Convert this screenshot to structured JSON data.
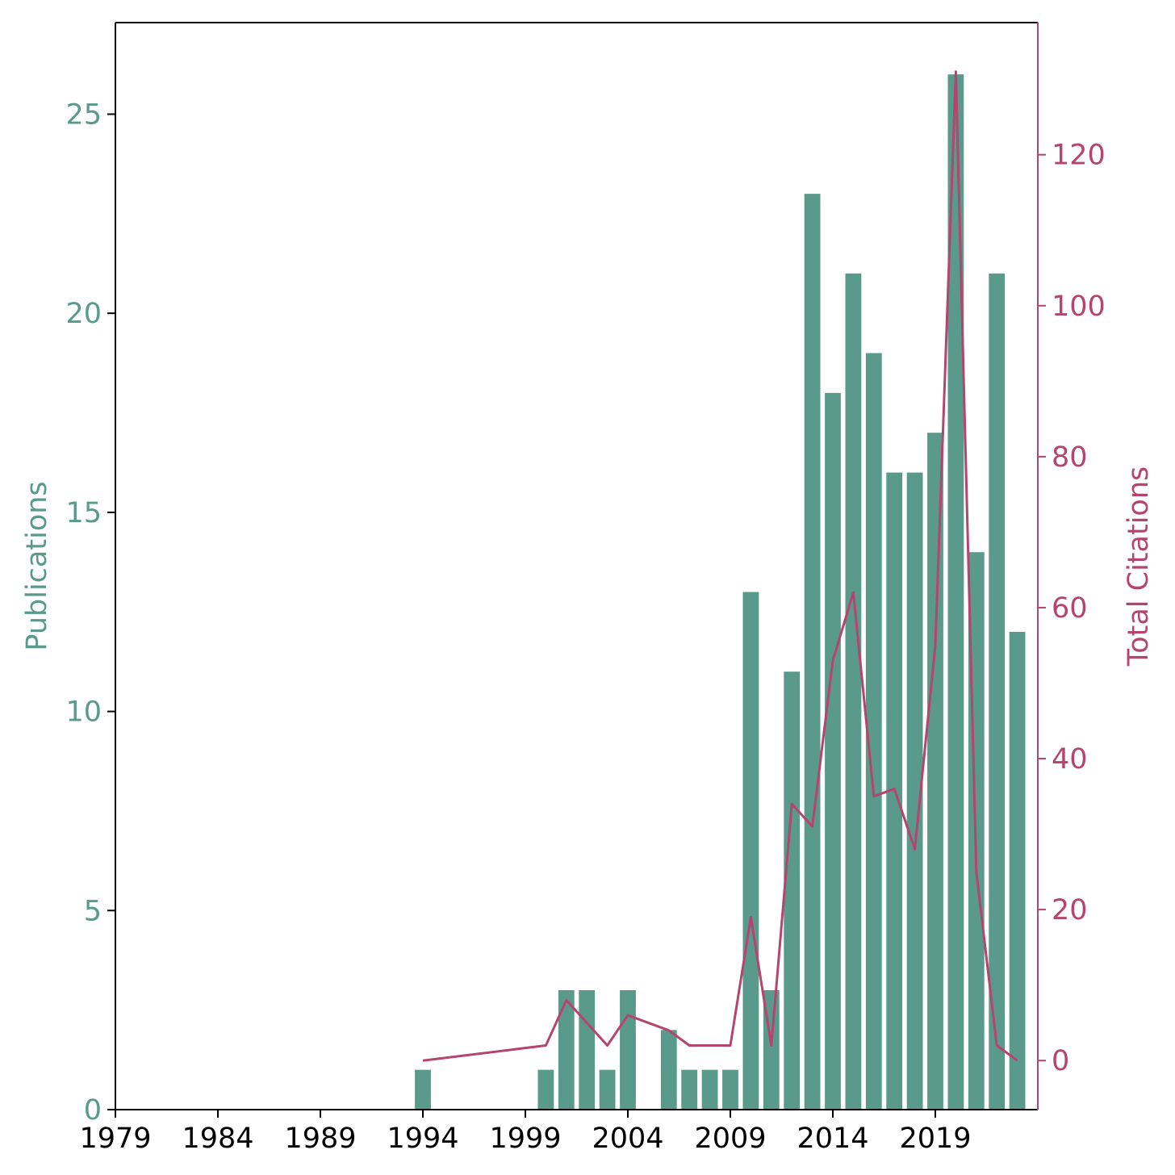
{
  "chart_data": {
    "type": "bar",
    "title": "",
    "xlabel": "",
    "ylabel": "Publications",
    "y2label": "Total Citations",
    "xlim": [
      1979,
      2024
    ],
    "ylim": [
      0,
      27.3
    ],
    "y2lim": [
      -6.5,
      137.5
    ],
    "x_ticks": [
      "1979",
      "1984",
      "1989",
      "1994",
      "1999",
      "2004",
      "2009",
      "2014",
      "2019"
    ],
    "y_ticks": [
      "0",
      "5",
      "10",
      "15",
      "20",
      "25"
    ],
    "y2_ticks": [
      "0",
      "20",
      "40",
      "60",
      "80",
      "100",
      "120"
    ],
    "grid": false,
    "colors": {
      "publications": "#5a9a8b",
      "citations": "#b5446e",
      "axis": "#000000"
    },
    "series": [
      {
        "name": "Publications",
        "type": "bar",
        "axis": "left",
        "x": [
          1994,
          2000,
          2001,
          2002,
          2003,
          2004,
          2006,
          2007,
          2008,
          2009,
          2010,
          2011,
          2012,
          2013,
          2014,
          2015,
          2016,
          2017,
          2018,
          2019,
          2020,
          2021,
          2022,
          2023
        ],
        "values": [
          1,
          1,
          3,
          3,
          1,
          3,
          2,
          1,
          1,
          1,
          13,
          3,
          11,
          23,
          18,
          21,
          19,
          16,
          16,
          17,
          26,
          14,
          21,
          12
        ]
      },
      {
        "name": "Total Citations",
        "type": "line",
        "axis": "right",
        "x": [
          1994,
          2000,
          2001,
          2002,
          2003,
          2004,
          2005,
          2006,
          2007,
          2008,
          2009,
          2010,
          2011,
          2012,
          2013,
          2014,
          2015,
          2016,
          2017,
          2018,
          2019,
          2020,
          2021,
          2022,
          2023
        ],
        "values": [
          0,
          2,
          8,
          5,
          2,
          6,
          5,
          4,
          2,
          2,
          2,
          19,
          2,
          34,
          31,
          53,
          62,
          35,
          36,
          28,
          55,
          131,
          25,
          2,
          0
        ]
      }
    ]
  }
}
